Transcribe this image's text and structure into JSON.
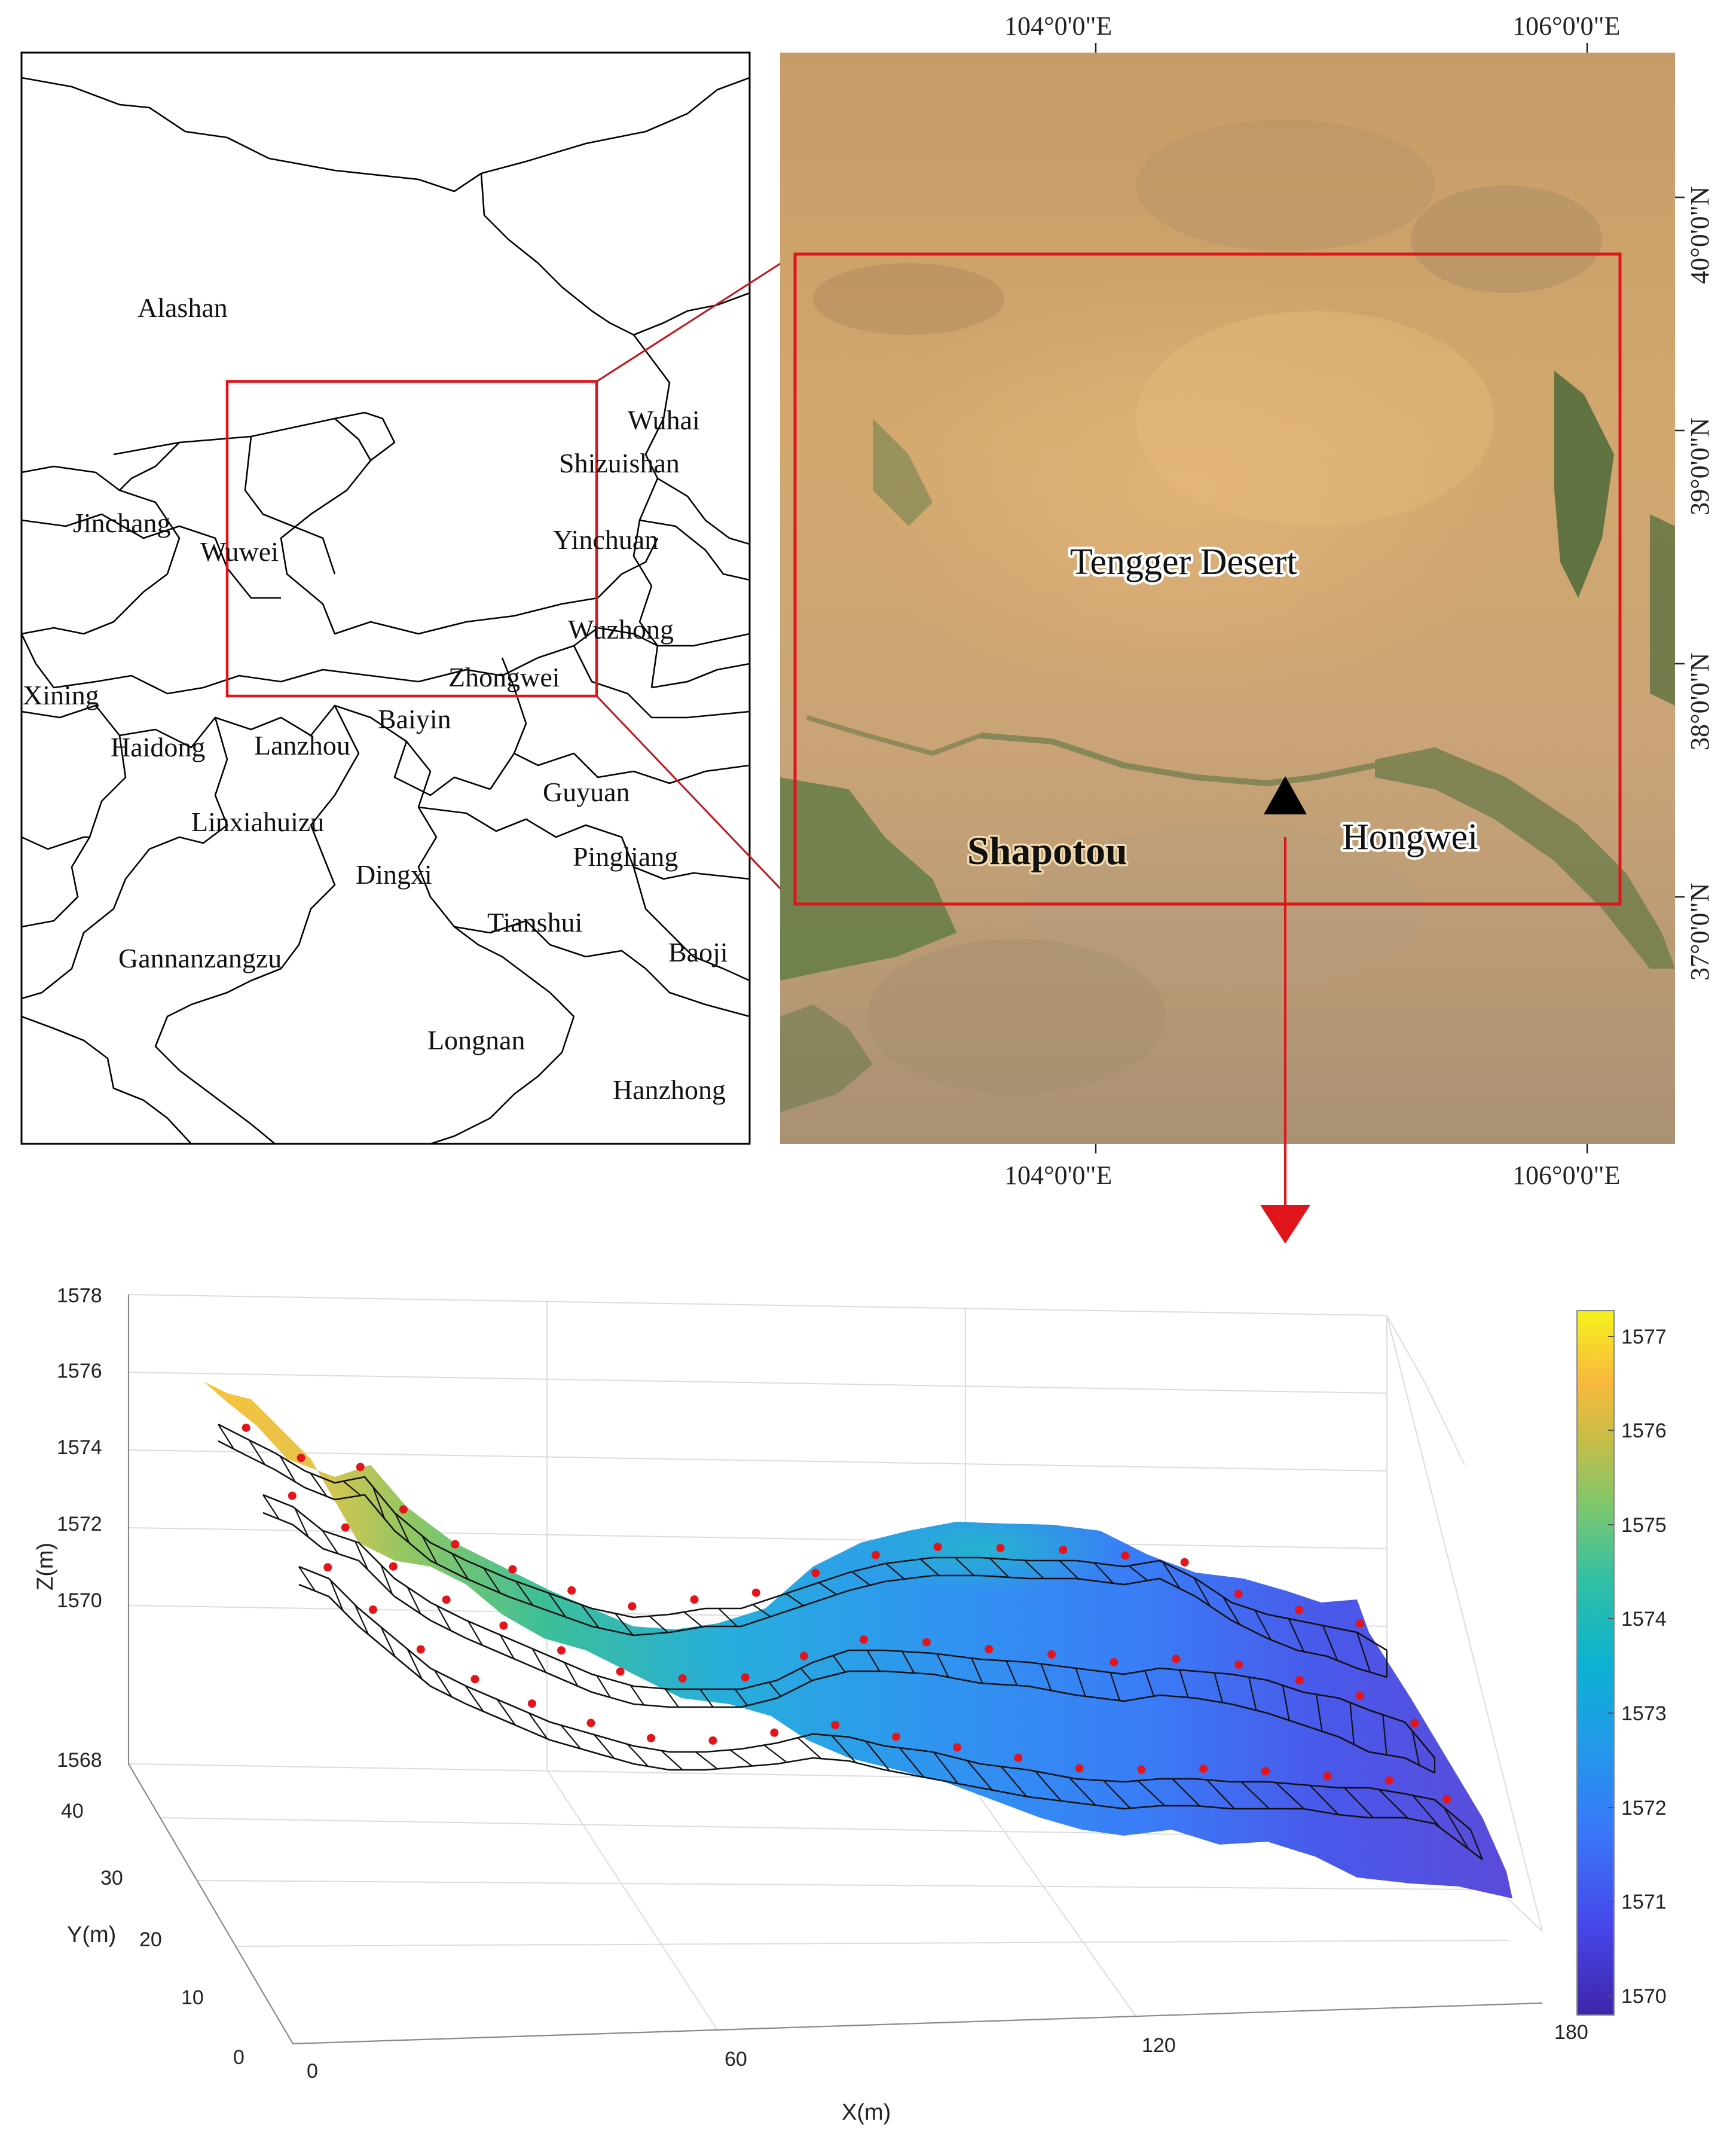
{
  "map_left": {
    "regions": [
      "Alashan",
      "Wuhai",
      "Shizuishan",
      "Jinchang",
      "Wuwei",
      "Yinchuan",
      "Wuzhong",
      "Zhongwei",
      "Xining",
      "Baiyin",
      "Haidong",
      "Lanzhou",
      "Guyuan",
      "Linxiahuizu",
      "Pingliang",
      "Dingxi",
      "Tianshui",
      "Gannanzangzu",
      "Baoji",
      "Longnan",
      "Hanzhong"
    ]
  },
  "map_right": {
    "top_lon_labels": [
      "104°0'0\"E",
      "106°0'0\"E"
    ],
    "bottom_lon_labels": [
      "104°0'0\"E",
      "106°0'0\"E"
    ],
    "lat_labels": [
      "40°0'0\"N",
      "39°0'0\"N",
      "38°0'0\"N",
      "37°0'0\"N"
    ],
    "places": {
      "desert": "Tengger Desert",
      "shapotou": "Shapotou",
      "hongwei": "Hongwei"
    },
    "colors": {
      "highlight_box": "#e0141b",
      "marker": "#000000"
    }
  },
  "plot3d": {
    "z_label": "Z(m)",
    "y_label": "Y(m)",
    "x_label": "X(m)",
    "z_ticks": [
      "1578",
      "1576",
      "1574",
      "1572",
      "1570",
      "1568"
    ],
    "y_ticks": [
      "40",
      "30",
      "20",
      "10",
      "0"
    ],
    "x_ticks": [
      "0",
      "60",
      "120",
      "180"
    ],
    "colorbar_ticks": [
      "1577",
      "1576",
      "1575",
      "1574",
      "1573",
      "1572",
      "1571",
      "1570"
    ],
    "colormap": "parula",
    "sample_point_color": "#e4141b"
  }
}
